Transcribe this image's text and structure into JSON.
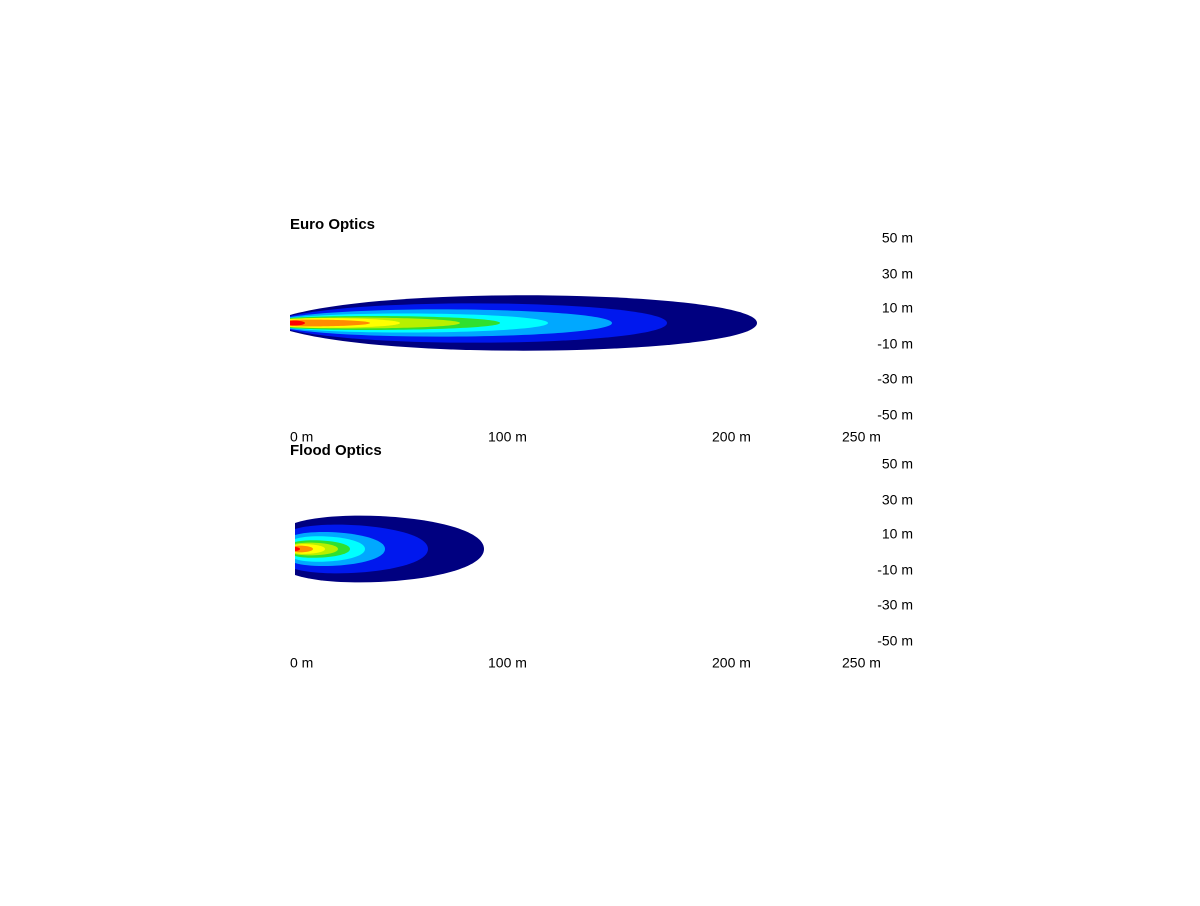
{
  "panels": [
    {
      "title": "Euro Optics",
      "x_labels": [
        "0 m",
        "100 m",
        "200 m",
        "250 m"
      ],
      "y_labels": [
        "50 m",
        "30 m",
        "10 m",
        "-10 m",
        "-30 m",
        "-50 m"
      ]
    },
    {
      "title": "Flood Optics",
      "x_labels": [
        "0 m",
        "100 m",
        "200 m",
        "250 m"
      ],
      "y_labels": [
        "50 m",
        "30 m",
        "10 m",
        "-10 m",
        "-30 m",
        "-50 m"
      ]
    }
  ]
}
